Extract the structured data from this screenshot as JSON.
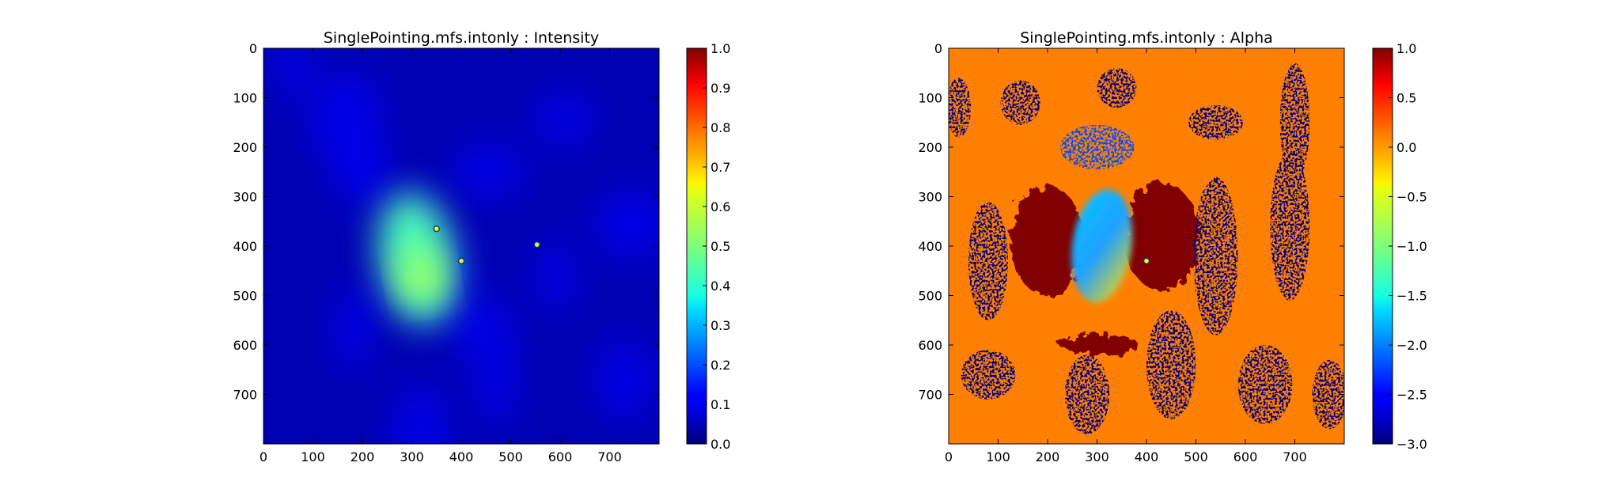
{
  "chart_data": [
    {
      "type": "heatmap",
      "title": "SinglePointing.mfs.intonly : Intensity",
      "xlabel": "",
      "ylabel": "",
      "x_range": [
        0,
        800
      ],
      "y_range": [
        800,
        0
      ],
      "x_ticks": [
        0,
        100,
        200,
        300,
        400,
        500,
        600,
        700
      ],
      "y_ticks": [
        0,
        100,
        200,
        300,
        400,
        500,
        600,
        700
      ],
      "colormap": "jet",
      "colorbar": {
        "range": [
          0.0,
          1.0
        ],
        "ticks": [
          0.0,
          0.1,
          0.2,
          0.3,
          0.4,
          0.5,
          0.6,
          0.7,
          0.8,
          0.9,
          1.0
        ],
        "tick_labels": [
          "0.0",
          "0.1",
          "0.2",
          "0.3",
          "0.4",
          "0.5",
          "0.6",
          "0.7",
          "0.8",
          "0.9",
          "1.0"
        ]
      },
      "background_value": 0.05,
      "features": [
        {
          "kind": "blob",
          "cx": 310,
          "cy": 425,
          "rx": 75,
          "ry": 135,
          "value": 0.45
        },
        {
          "kind": "blob",
          "cx": 320,
          "cy": 460,
          "rx": 40,
          "ry": 45,
          "value": 0.55
        },
        {
          "kind": "point",
          "cx": 350,
          "cy": 365,
          "value": 0.6
        },
        {
          "kind": "point",
          "cx": 400,
          "cy": 430,
          "value": 0.6
        },
        {
          "kind": "point",
          "cx": 553,
          "cy": 397,
          "value": 0.6
        }
      ]
    },
    {
      "type": "heatmap",
      "title": "SinglePointing.mfs.intonly : Alpha",
      "xlabel": "",
      "ylabel": "",
      "x_range": [
        0,
        800
      ],
      "y_range": [
        800,
        0
      ],
      "x_ticks": [
        0,
        100,
        200,
        300,
        400,
        500,
        600,
        700
      ],
      "y_ticks": [
        0,
        100,
        200,
        300,
        400,
        500,
        600,
        700
      ],
      "colormap": "jet",
      "colorbar": {
        "range": [
          -3.0,
          1.0
        ],
        "ticks": [
          1.0,
          0.5,
          0.0,
          -0.5,
          -1.0,
          -1.5,
          -2.0,
          -2.5,
          -3.0
        ],
        "tick_labels": [
          "1.0",
          "0.5",
          "0.0",
          "−0.5",
          "−1.0",
          "−1.5",
          "−2.0",
          "−2.5",
          "−3.0"
        ]
      },
      "background_value": 0.0,
      "features": [
        {
          "kind": "lobe",
          "cx": 200,
          "cy": 390,
          "rx": 75,
          "ry": 110,
          "value": 1.0
        },
        {
          "kind": "lobe",
          "cx": 430,
          "cy": 380,
          "rx": 75,
          "ry": 110,
          "value": 1.0
        },
        {
          "kind": "band",
          "cx": 305,
          "cy": 600,
          "rx": 80,
          "ry": 20,
          "value": 1.0
        },
        {
          "kind": "blob",
          "cx": 310,
          "cy": 400,
          "rx": 60,
          "ry": 115,
          "value": -2.0
        },
        {
          "kind": "noise",
          "cx": 20,
          "cy": 120,
          "rx": 25,
          "ry": 60,
          "value": -3.0
        },
        {
          "kind": "noise",
          "cx": 145,
          "cy": 110,
          "rx": 40,
          "ry": 45,
          "value": -3.0
        },
        {
          "kind": "noise",
          "cx": 340,
          "cy": 80,
          "rx": 40,
          "ry": 40,
          "value": -3.0
        },
        {
          "kind": "noise",
          "cx": 300,
          "cy": 200,
          "rx": 75,
          "ry": 45,
          "value": -2.2
        },
        {
          "kind": "noise",
          "cx": 540,
          "cy": 150,
          "rx": 55,
          "ry": 35,
          "value": -3.0
        },
        {
          "kind": "noise",
          "cx": 700,
          "cy": 150,
          "rx": 30,
          "ry": 120,
          "value": -3.0
        },
        {
          "kind": "noise",
          "cx": 80,
          "cy": 430,
          "rx": 40,
          "ry": 120,
          "value": -3.0
        },
        {
          "kind": "noise",
          "cx": 540,
          "cy": 420,
          "rx": 45,
          "ry": 160,
          "value": -3.0
        },
        {
          "kind": "noise",
          "cx": 690,
          "cy": 360,
          "rx": 40,
          "ry": 150,
          "value": -3.0
        },
        {
          "kind": "noise",
          "cx": 80,
          "cy": 660,
          "rx": 55,
          "ry": 50,
          "value": -3.0
        },
        {
          "kind": "noise",
          "cx": 280,
          "cy": 700,
          "rx": 45,
          "ry": 80,
          "value": -3.0
        },
        {
          "kind": "noise",
          "cx": 450,
          "cy": 640,
          "rx": 50,
          "ry": 110,
          "value": -3.0
        },
        {
          "kind": "noise",
          "cx": 640,
          "cy": 680,
          "rx": 55,
          "ry": 80,
          "value": -3.0
        },
        {
          "kind": "noise",
          "cx": 770,
          "cy": 700,
          "rx": 35,
          "ry": 70,
          "value": -3.0
        },
        {
          "kind": "point",
          "cx": 400,
          "cy": 430,
          "value": -0.5
        }
      ]
    }
  ]
}
